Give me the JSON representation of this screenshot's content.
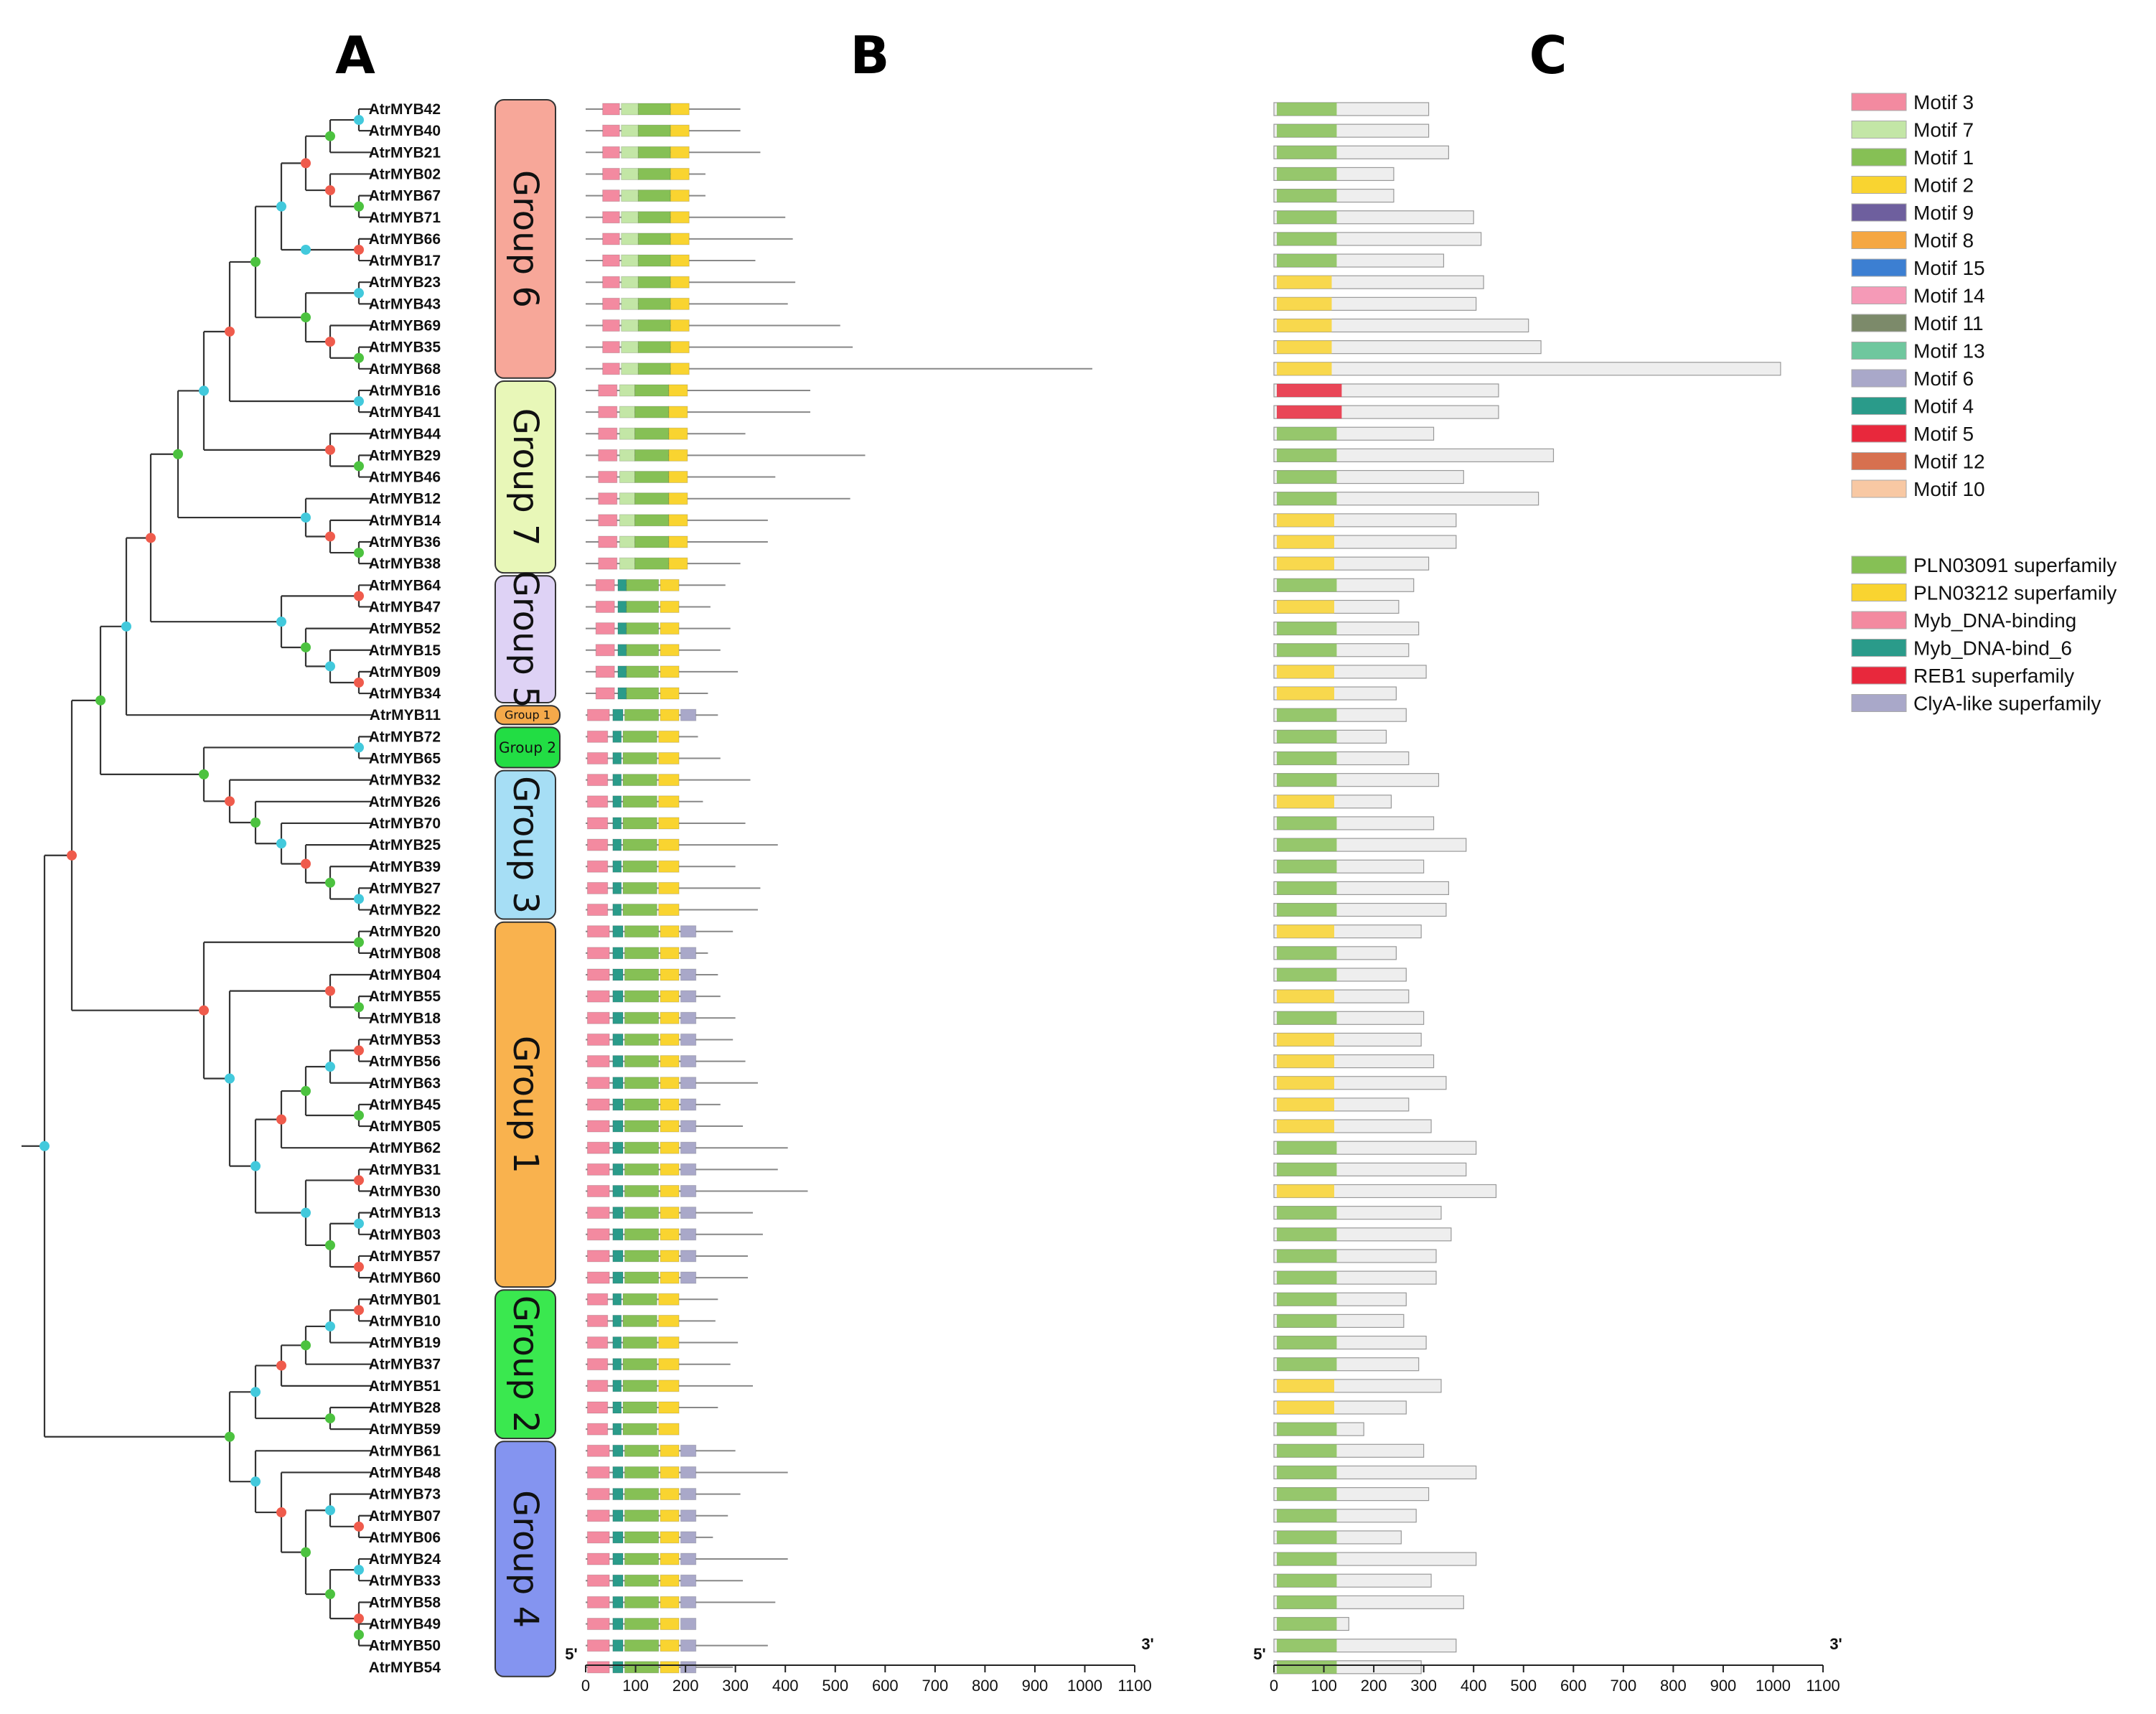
{
  "panels": {
    "a": "A",
    "b": "B",
    "c": "C"
  },
  "axis": {
    "ticks": [
      "0",
      "100",
      "200",
      "300",
      "400",
      "500",
      "600",
      "700",
      "800",
      "900",
      "1000",
      "1100"
    ],
    "start_label": "5'",
    "end_label": "3'"
  },
  "genes": [
    "AtrMYB42",
    "AtrMYB40",
    "AtrMYB21",
    "AtrMYB02",
    "AtrMYB67",
    "AtrMYB71",
    "AtrMYB66",
    "AtrMYB17",
    "AtrMYB23",
    "AtrMYB43",
    "AtrMYB69",
    "AtrMYB35",
    "AtrMYB68",
    "AtrMYB16",
    "AtrMYB41",
    "AtrMYB44",
    "AtrMYB29",
    "AtrMYB46",
    "AtrMYB12",
    "AtrMYB14",
    "AtrMYB36",
    "AtrMYB38",
    "AtrMYB64",
    "AtrMYB47",
    "AtrMYB52",
    "AtrMYB15",
    "AtrMYB09",
    "AtrMYB34",
    "AtrMYB11",
    "AtrMYB72",
    "AtrMYB65",
    "AtrMYB32",
    "AtrMYB26",
    "AtrMYB70",
    "AtrMYB25",
    "AtrMYB39",
    "AtrMYB27",
    "AtrMYB22",
    "AtrMYB20",
    "AtrMYB08",
    "AtrMYB04",
    "AtrMYB55",
    "AtrMYB18",
    "AtrMYB53",
    "AtrMYB56",
    "AtrMYB63",
    "AtrMYB45",
    "AtrMYB05",
    "AtrMYB62",
    "AtrMYB31",
    "AtrMYB30",
    "AtrMYB13",
    "AtrMYB03",
    "AtrMYB57",
    "AtrMYB60",
    "AtrMYB01",
    "AtrMYB10",
    "AtrMYB19",
    "AtrMYB37",
    "AtrMYB51",
    "AtrMYB28",
    "AtrMYB59",
    "AtrMYB61",
    "AtrMYB48",
    "AtrMYB73",
    "AtrMYB07",
    "AtrMYB06",
    "AtrMYB24",
    "AtrMYB33",
    "AtrMYB58",
    "AtrMYB49",
    "AtrMYB50",
    "AtrMYB54"
  ],
  "groups": [
    {
      "label": "Group 6",
      "first": 0,
      "last": 12,
      "color": "#f7a799"
    },
    {
      "label": "Group 7",
      "first": 13,
      "last": 21,
      "color": "#e8f7b8"
    },
    {
      "label": "Group 5",
      "first": 22,
      "last": 27,
      "color": "#ded2f5"
    },
    {
      "label": "Group 1",
      "first": 28,
      "last": 28,
      "color": "#f5a94a"
    },
    {
      "label": "Group 2",
      "first": 29,
      "last": 30,
      "color": "#22dd44"
    },
    {
      "label": "Group 3",
      "first": 31,
      "last": 37,
      "color": "#a6def5"
    },
    {
      "label": "Group 1",
      "first": 38,
      "last": 54,
      "color": "#f9b24e"
    },
    {
      "label": "Group 2",
      "first": 55,
      "last": 61,
      "color": "#3ae84f"
    },
    {
      "label": "Group 4",
      "first": 62,
      "last": 72,
      "color": "#8494f0"
    }
  ],
  "protein_lengths": [
    310,
    310,
    350,
    240,
    240,
    400,
    415,
    340,
    420,
    405,
    510,
    535,
    1015,
    450,
    450,
    320,
    560,
    380,
    530,
    365,
    365,
    310,
    280,
    250,
    290,
    270,
    305,
    245,
    265,
    225,
    270,
    330,
    235,
    320,
    385,
    300,
    350,
    345,
    295,
    245,
    265,
    270,
    300,
    295,
    320,
    345,
    270,
    315,
    405,
    385,
    445,
    335,
    355,
    325,
    325,
    265,
    260,
    305,
    290,
    335,
    265,
    180,
    300,
    405,
    310,
    285,
    255,
    405,
    315,
    380,
    150,
    365,
    295
  ],
  "motif_legend": [
    {
      "name": "Motif 3",
      "color": "#f38aa0"
    },
    {
      "name": "Motif 7",
      "color": "#c3e6a6"
    },
    {
      "name": "Motif 1",
      "color": "#86c055"
    },
    {
      "name": "Motif 2",
      "color": "#f9d430"
    },
    {
      "name": "Motif 9",
      "color": "#6e5f9e"
    },
    {
      "name": "Motif 8",
      "color": "#f5a742"
    },
    {
      "name": "Motif 15",
      "color": "#3c7fd2"
    },
    {
      "name": "Motif 14",
      "color": "#f59ab7"
    },
    {
      "name": "Motif 11",
      "color": "#7c8a6a"
    },
    {
      "name": "Motif 13",
      "color": "#6fc79e"
    },
    {
      "name": "Motif 6",
      "color": "#a9a8c9"
    },
    {
      "name": "Motif 4",
      "color": "#2a9b8a"
    },
    {
      "name": "Motif 5",
      "color": "#e8283c"
    },
    {
      "name": "Motif 12",
      "color": "#d7704f"
    },
    {
      "name": "Motif 10",
      "color": "#f8c8a3"
    }
  ],
  "domain_legend": [
    {
      "name": "PLN03091 superfamily",
      "color": "#86c055"
    },
    {
      "name": "PLN03212 superfamily",
      "color": "#f9d430"
    },
    {
      "name": "Myb_DNA-binding",
      "color": "#f38aa0"
    },
    {
      "name": "Myb_DNA-bind_6",
      "color": "#2a9b8a"
    },
    {
      "name": "REB1 superfamily",
      "color": "#e8283c"
    },
    {
      "name": "ClyA-like superfamily",
      "color": "#a9a8c9"
    }
  ]
}
